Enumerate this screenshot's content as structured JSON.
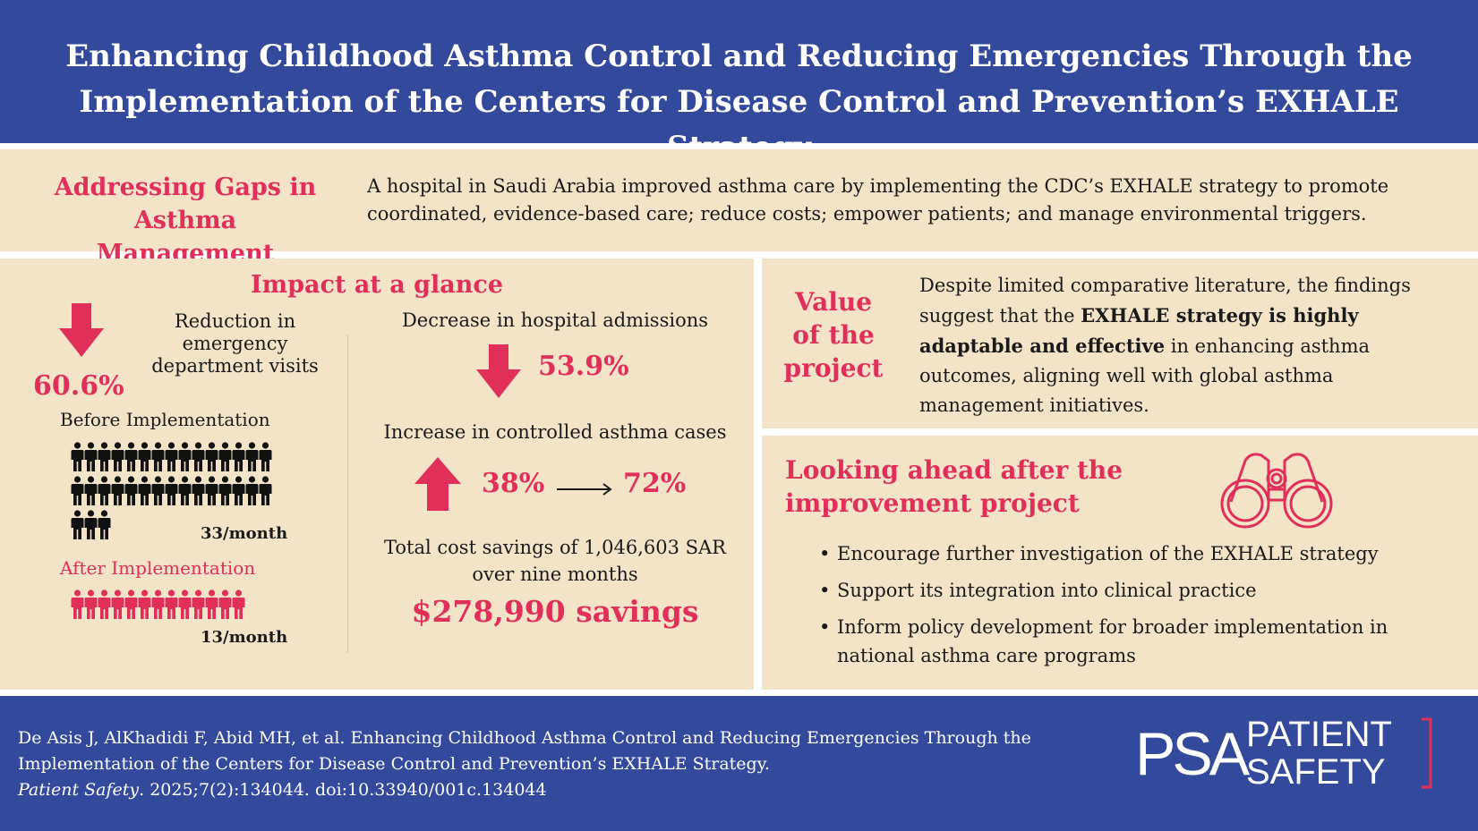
{
  "header": {
    "title": "Enhancing Childhood Asthma Control and Reducing Emergencies Through the Implementation of the Centers for Disease Control and Prevention’s EXHALE Strategy"
  },
  "gaps": {
    "title": "Addressing Gaps in Asthma Management",
    "text": "A hospital in Saudi Arabia improved asthma care by implementing the CDC’s EXHALE strategy to promote coordinated, evidence-based care; reduce costs; empower patients; and manage environmental triggers."
  },
  "impact": {
    "title": "Impact at a glance",
    "ed": {
      "pct": "60.6%",
      "label": "Reduction in emergency department visits",
      "before_label": "Before Implementation",
      "before_rate": "33/month",
      "before_count": 33,
      "after_label": "After Implementation",
      "after_rate": "13/month",
      "after_count": 13
    },
    "admissions": {
      "label": "Decrease in hospital admissions",
      "pct": "53.9%"
    },
    "controlled": {
      "label": "Increase in controlled asthma cases",
      "from": "38%",
      "to": "72%"
    },
    "savings": {
      "label": "Total cost savings of 1,046,603 SAR over nine months",
      "amount": "$278,990 savings"
    }
  },
  "value": {
    "title": "Value of the project",
    "text_pre": "Despite limited comparative literature, the findings suggest that the ",
    "text_bold": "EXHALE strategy is highly adaptable and effective",
    "text_post": " in enhancing asthma outcomes, aligning well with global asthma management initiatives."
  },
  "ahead": {
    "title": "Looking ahead after the improvement project",
    "icon": "binoculars-icon",
    "bullets": [
      "Encourage further investigation of the EXHALE strategy",
      "Support its integration into clinical practice",
      "Inform policy development for broader implementation in national asthma care programs"
    ]
  },
  "footer": {
    "citation_main": "De Asis J, AlKhadidi F, Abid MH, et al. Enhancing Childhood Asthma Control and Reducing Emergencies Through the Implementation of the Centers for Disease Control and Prevention’s EXHALE Strategy.",
    "journal": "Patient Safety",
    "citation_tail": ". 2025;7(2):134044. doi:10.33940/001c.134044",
    "logo_psa": "PSA",
    "logo_line1": "PATIENT",
    "logo_line2": "SAFETY"
  },
  "colors": {
    "navy": "#334a9c",
    "beige": "#f3e3c7",
    "accent": "#e0305a"
  }
}
